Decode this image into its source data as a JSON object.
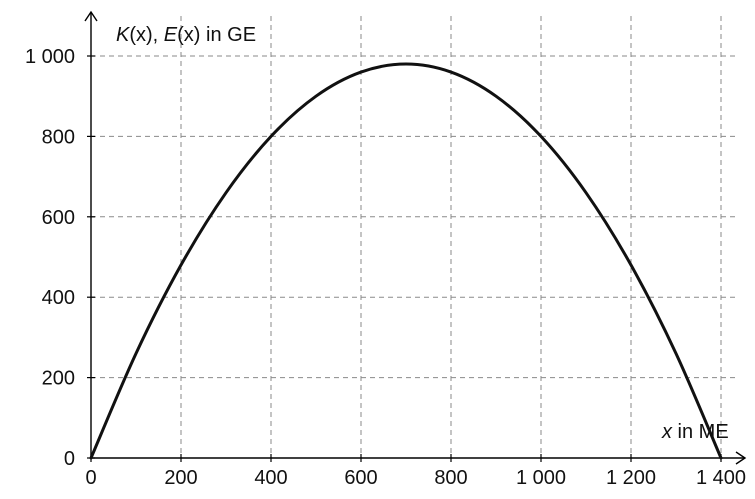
{
  "chart_data": {
    "type": "line",
    "title": "",
    "xlabel": {
      "var": "x",
      "rest": " in ME"
    },
    "ylabel": {
      "k": "K",
      "arg1": "(x)",
      "sep": ", ",
      "e": "E",
      "arg2": "(x)",
      "rest": " in GE"
    },
    "xlim": [
      0,
      1400
    ],
    "ylim": [
      0,
      1000
    ],
    "x_ticks": [
      0,
      200,
      400,
      600,
      800,
      1000,
      1200,
      1400
    ],
    "x_tick_labels": [
      "0",
      "200",
      "400",
      "600",
      "800",
      "1 000",
      "1 200",
      "1 400"
    ],
    "y_ticks": [
      0,
      200,
      400,
      600,
      800,
      1000
    ],
    "y_tick_labels": [
      "0",
      "200",
      "400",
      "600",
      "800",
      "1 000"
    ],
    "grid": true,
    "series": [
      {
        "color": "#111111",
        "x": [
          0,
          100,
          200,
          300,
          400,
          500,
          600,
          700,
          800,
          900,
          1000,
          1100,
          1200,
          1300,
          1400
        ],
        "y": [
          0,
          260,
          480,
          660,
          800,
          900,
          960,
          980,
          960,
          900,
          800,
          660,
          480,
          260,
          0
        ]
      }
    ]
  }
}
